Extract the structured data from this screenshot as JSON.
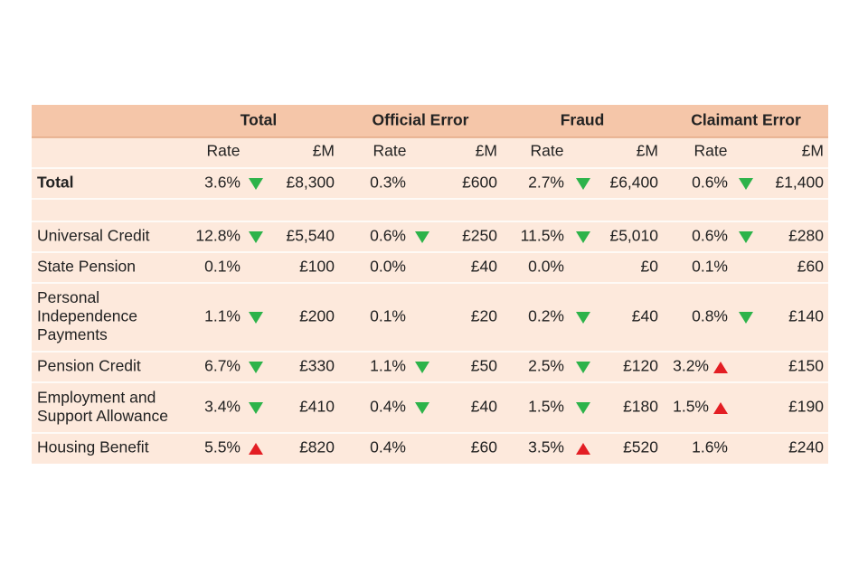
{
  "table": {
    "groups": [
      "Total",
      "Official Error",
      "Fraud",
      "Claimant Error"
    ],
    "subheaders": [
      "Rate",
      "£M"
    ],
    "rows": [
      {
        "label": [
          "Total"
        ],
        "cells": [
          {
            "rate": "3.6%",
            "arrow": "down",
            "amount": "£8,300"
          },
          {
            "rate": "0.3%",
            "arrow": null,
            "amount": "£600"
          },
          {
            "rate": "2.7%",
            "arrow": "down",
            "amount": "£6,400"
          },
          {
            "rate": "0.6%",
            "arrow": "down",
            "amount": "£1,400"
          }
        ]
      },
      {
        "label": [
          "Universal Credit"
        ],
        "cells": [
          {
            "rate": "12.8%",
            "arrow": "down",
            "amount": "£5,540"
          },
          {
            "rate": "0.6%",
            "arrow": "down",
            "amount": "£250"
          },
          {
            "rate": "11.5%",
            "arrow": "down",
            "amount": "£5,010"
          },
          {
            "rate": "0.6%",
            "arrow": "down",
            "amount": "£280"
          }
        ]
      },
      {
        "label": [
          "State Pension"
        ],
        "cells": [
          {
            "rate": "0.1%",
            "arrow": null,
            "amount": "£100"
          },
          {
            "rate": "0.0%",
            "arrow": null,
            "amount": "£40"
          },
          {
            "rate": "0.0%",
            "arrow": null,
            "amount": "£0"
          },
          {
            "rate": "0.1%",
            "arrow": null,
            "amount": "£60"
          }
        ]
      },
      {
        "label": [
          "Personal",
          "Independence",
          "Payments"
        ],
        "cells": [
          {
            "rate": "1.1%",
            "arrow": "down",
            "amount": "£200"
          },
          {
            "rate": "0.1%",
            "arrow": null,
            "amount": "£20"
          },
          {
            "rate": "0.2%",
            "arrow": "down",
            "amount": "£40"
          },
          {
            "rate": "0.8%",
            "arrow": "down",
            "amount": "£140"
          }
        ]
      },
      {
        "label": [
          "Pension Credit"
        ],
        "cells": [
          {
            "rate": "6.7%",
            "arrow": "down",
            "amount": "£330"
          },
          {
            "rate": "1.1%",
            "arrow": "down",
            "amount": "£50"
          },
          {
            "rate": "2.5%",
            "arrow": "down",
            "amount": "£120"
          },
          {
            "rate": "3.2%",
            "arrow": "up",
            "amount": "£150"
          }
        ]
      },
      {
        "label": [
          "Employment and",
          "Support Allowance"
        ],
        "cells": [
          {
            "rate": "3.4%",
            "arrow": "down",
            "amount": "£410"
          },
          {
            "rate": "0.4%",
            "arrow": "down",
            "amount": "£40"
          },
          {
            "rate": "1.5%",
            "arrow": "down",
            "amount": "£180"
          },
          {
            "rate": "1.5%",
            "arrow": "up",
            "amount": "£190"
          }
        ]
      },
      {
        "label": [
          "Housing Benefit"
        ],
        "cells": [
          {
            "rate": "5.5%",
            "arrow": "up",
            "amount": "£820"
          },
          {
            "rate": "0.4%",
            "arrow": null,
            "amount": "£60"
          },
          {
            "rate": "3.5%",
            "arrow": "up",
            "amount": "£520"
          },
          {
            "rate": "1.6%",
            "arrow": null,
            "amount": "£240"
          }
        ]
      }
    ]
  }
}
